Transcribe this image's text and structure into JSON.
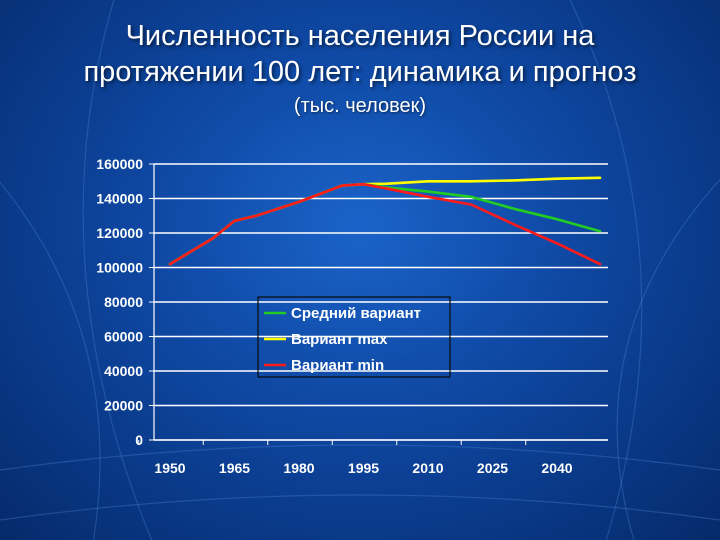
{
  "title_line1": "Численность населения России на",
  "title_line2": "протяжении 100 лет: динамика и прогноз",
  "subtitle": "(тыс. человек)",
  "colors": {
    "series_mid": "#22cc22",
    "series_max": "#ffff00",
    "series_min": "#ff1a1a",
    "axis_text": "#ffffff",
    "gridline": "#ffffff"
  },
  "chart_data": {
    "type": "line",
    "ylim": [
      0,
      160000
    ],
    "yticks": [
      "0",
      "20000",
      "40000",
      "60000",
      "80000",
      "100000",
      "120000",
      "140000",
      "160000"
    ],
    "xlim": [
      1950,
      2055
    ],
    "xticks": [
      "1950",
      "1965",
      "1980",
      "1995",
      "2010",
      "2025",
      "2040"
    ],
    "grid": true,
    "legend_position": "center-left",
    "series": [
      {
        "name": "Средний вариант",
        "color_key": "series_mid",
        "points": [
          [
            1950,
            102000
          ],
          [
            1960,
            117000
          ],
          [
            1965,
            127000
          ],
          [
            1970,
            130000
          ],
          [
            1980,
            138000
          ],
          [
            1990,
            147500
          ],
          [
            1995,
            148300
          ],
          [
            2000,
            146500
          ],
          [
            2010,
            144000
          ],
          [
            2020,
            141000
          ],
          [
            2030,
            134000
          ],
          [
            2040,
            128000
          ],
          [
            2050,
            121000
          ]
        ]
      },
      {
        "name": "Вариант max",
        "color_key": "series_max",
        "points": [
          [
            1950,
            102000
          ],
          [
            1960,
            117000
          ],
          [
            1965,
            127000
          ],
          [
            1970,
            130000
          ],
          [
            1980,
            138000
          ],
          [
            1990,
            147500
          ],
          [
            1995,
            148300
          ],
          [
            2000,
            148500
          ],
          [
            2010,
            150000
          ],
          [
            2020,
            150000
          ],
          [
            2030,
            150500
          ],
          [
            2040,
            151500
          ],
          [
            2050,
            152000
          ]
        ]
      },
      {
        "name": "Вариант min",
        "color_key": "series_min",
        "points": [
          [
            1950,
            102000
          ],
          [
            1960,
            117000
          ],
          [
            1965,
            127000
          ],
          [
            1970,
            130000
          ],
          [
            1980,
            138000
          ],
          [
            1990,
            147500
          ],
          [
            1995,
            148300
          ],
          [
            2000,
            146000
          ],
          [
            2010,
            141000
          ],
          [
            2020,
            136500
          ],
          [
            2030,
            125000
          ],
          [
            2040,
            114000
          ],
          [
            2050,
            102000
          ]
        ]
      }
    ]
  }
}
